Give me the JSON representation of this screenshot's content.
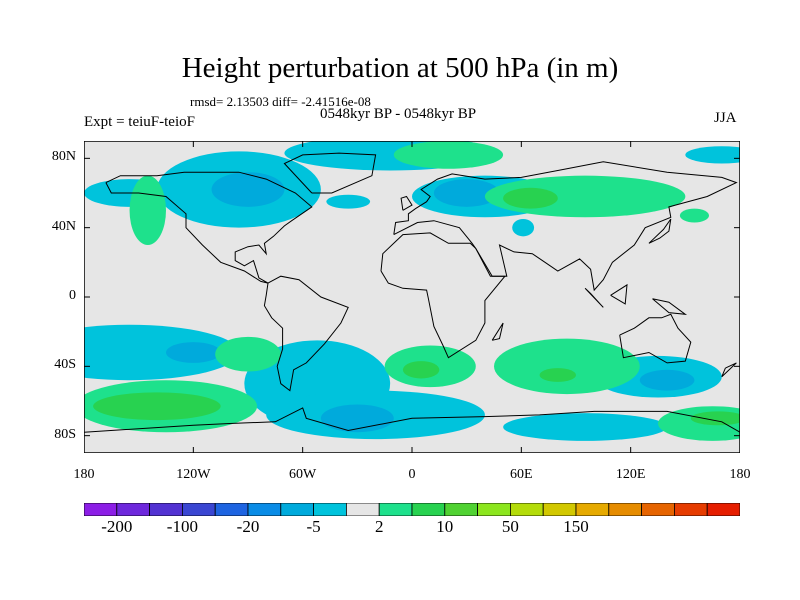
{
  "header": {
    "title": "Height perturbation at 500 hPa (in m)",
    "stats": "rmsd= 2.13503 diff= -2.41516e-08",
    "period": "0548kyr BP - 0548kyr BP",
    "expt": "Expt = teiuF-teioF",
    "season": "JJA"
  },
  "chart_data": {
    "type": "heatmap",
    "title": "Height perturbation at 500 hPa (in m)",
    "variable": "500 hPa geopotential height perturbation",
    "units": "m",
    "projection": "cylindrical equidistant",
    "xlim": [
      -180,
      180
    ],
    "ylim": [
      -90,
      90
    ],
    "x_ticks": [
      {
        "value": -180,
        "label": "180"
      },
      {
        "value": -120,
        "label": "120W"
      },
      {
        "value": -60,
        "label": "60W"
      },
      {
        "value": 0,
        "label": "0"
      },
      {
        "value": 60,
        "label": "60E"
      },
      {
        "value": 120,
        "label": "120E"
      },
      {
        "value": 180,
        "label": "180"
      }
    ],
    "y_ticks": [
      {
        "value": 80,
        "label": "80N"
      },
      {
        "value": 40,
        "label": "40N"
      },
      {
        "value": 0,
        "label": "0"
      },
      {
        "value": -40,
        "label": "40S"
      },
      {
        "value": -80,
        "label": "80S"
      }
    ],
    "colorbar": {
      "colors": [
        "#8c1ee6",
        "#6e28dc",
        "#5232d2",
        "#3a46d2",
        "#1e64e1",
        "#0a8ce6",
        "#00aadc",
        "#00c3dc",
        "#e6e6e6",
        "#1ee18c",
        "#28d250",
        "#50d232",
        "#8ce61e",
        "#b4dc0a",
        "#d2c800",
        "#e6aa00",
        "#e68c00",
        "#e66400",
        "#e63c00",
        "#e61e00"
      ],
      "labels": [
        {
          "after_box": 1,
          "text": "-200"
        },
        {
          "after_box": 3,
          "text": "-100"
        },
        {
          "after_box": 5,
          "text": "-20"
        },
        {
          "after_box": 7,
          "text": "-5"
        },
        {
          "after_box": 9,
          "text": "2"
        },
        {
          "after_box": 11,
          "text": "10"
        },
        {
          "after_box": 13,
          "text": "50"
        },
        {
          "after_box": 15,
          "text": "150"
        }
      ]
    },
    "field": [
      {
        "lon": -12,
        "lat": 83,
        "rx": 58,
        "ry": 10,
        "level": 7
      },
      {
        "lon": -155,
        "lat": 60,
        "rx": 25,
        "ry": 8,
        "level": 7
      },
      {
        "lon": -95,
        "lat": 62,
        "rx": 45,
        "ry": 22,
        "level": 7
      },
      {
        "lon": -90,
        "lat": 62,
        "rx": 20,
        "ry": 10,
        "level": 6
      },
      {
        "lon": -35,
        "lat": 55,
        "rx": 12,
        "ry": 4,
        "level": 7
      },
      {
        "lon": 40,
        "lat": 58,
        "rx": 40,
        "ry": 12,
        "level": 7
      },
      {
        "lon": 30,
        "lat": 60,
        "rx": 18,
        "ry": 8,
        "level": 6
      },
      {
        "lon": 20,
        "lat": 82,
        "rx": 30,
        "ry": 8,
        "level": 9
      },
      {
        "lon": -145,
        "lat": 50,
        "rx": 10,
        "ry": 20,
        "level": 9
      },
      {
        "lon": 95,
        "lat": 58,
        "rx": 55,
        "ry": 12,
        "level": 9
      },
      {
        "lon": 65,
        "lat": 57,
        "rx": 15,
        "ry": 6,
        "level": 10
      },
      {
        "lon": 155,
        "lat": 47,
        "rx": 8,
        "ry": 4,
        "level": 9
      },
      {
        "lon": 61,
        "lat": 40,
        "rx": 6,
        "ry": 5,
        "level": 7
      },
      {
        "lon": 170,
        "lat": 82,
        "rx": 20,
        "ry": 5,
        "level": 7
      },
      {
        "lon": -155,
        "lat": -32,
        "rx": 60,
        "ry": 16,
        "level": 7
      },
      {
        "lon": -120,
        "lat": -32,
        "rx": 15,
        "ry": 6,
        "level": 6
      },
      {
        "lon": -52,
        "lat": -50,
        "rx": 40,
        "ry": 25,
        "level": 7
      },
      {
        "lon": -20,
        "lat": -68,
        "rx": 60,
        "ry": 14,
        "level": 7
      },
      {
        "lon": -30,
        "lat": -70,
        "rx": 20,
        "ry": 8,
        "level": 6
      },
      {
        "lon": 95,
        "lat": -75,
        "rx": 45,
        "ry": 8,
        "level": 7
      },
      {
        "lon": 135,
        "lat": -46,
        "rx": 35,
        "ry": 12,
        "level": 7
      },
      {
        "lon": 140,
        "lat": -48,
        "rx": 15,
        "ry": 6,
        "level": 6
      },
      {
        "lon": -135,
        "lat": -63,
        "rx": 50,
        "ry": 15,
        "level": 9
      },
      {
        "lon": -140,
        "lat": -63,
        "rx": 35,
        "ry": 8,
        "level": 10
      },
      {
        "lon": -90,
        "lat": -33,
        "rx": 18,
        "ry": 10,
        "level": 9
      },
      {
        "lon": 10,
        "lat": -40,
        "rx": 25,
        "ry": 12,
        "level": 9
      },
      {
        "lon": 5,
        "lat": -42,
        "rx": 10,
        "ry": 5,
        "level": 10
      },
      {
        "lon": 85,
        "lat": -40,
        "rx": 40,
        "ry": 16,
        "level": 9
      },
      {
        "lon": 80,
        "lat": -45,
        "rx": 10,
        "ry": 4,
        "level": 10
      },
      {
        "lon": 165,
        "lat": -73,
        "rx": 30,
        "ry": 10,
        "level": 9
      },
      {
        "lon": 168,
        "lat": -70,
        "rx": 15,
        "ry": 4,
        "level": 10
      }
    ]
  }
}
